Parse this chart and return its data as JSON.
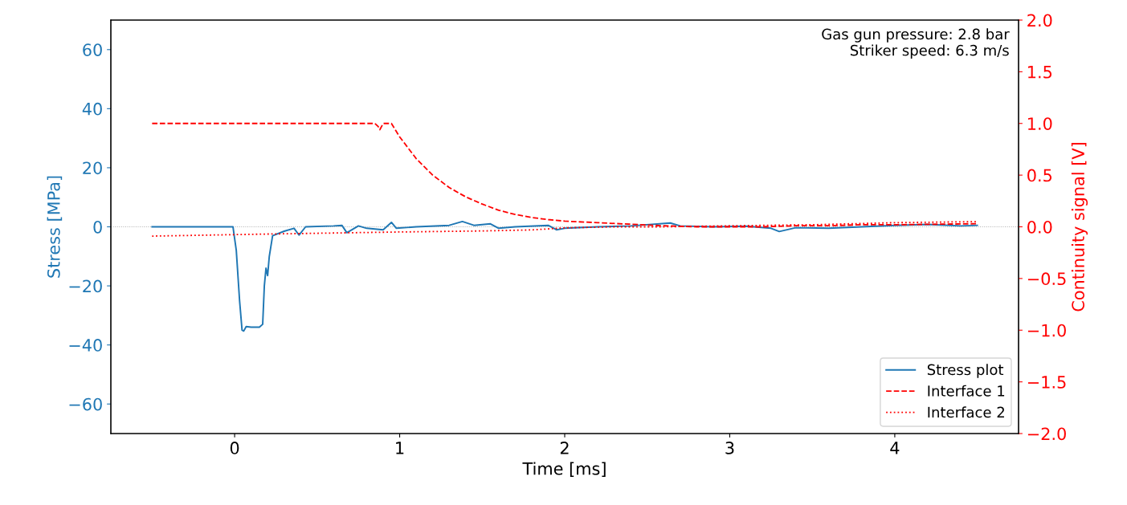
{
  "chart_data": {
    "type": "line",
    "xlabel": "Time [ms]",
    "ylabel": "Stress [MPa]",
    "y2label": "Continuity signal [V]",
    "xlim": [
      -0.75,
      4.75
    ],
    "xticks": [
      0,
      1,
      2,
      3,
      4
    ],
    "ylim": [
      -70,
      70
    ],
    "yticks": [
      -60,
      -40,
      -20,
      0,
      20,
      40,
      60
    ],
    "y2lim": [
      -2.0,
      2.0
    ],
    "y2ticks": [
      {
        "value": -2,
        "label": "−2.0"
      },
      {
        "value": -1.5,
        "label": "−1.5"
      },
      {
        "value": -1,
        "label": "−1.0"
      },
      {
        "value": -0.5,
        "label": "−0.5"
      },
      {
        "value": 0,
        "label": "0.0"
      },
      {
        "value": 0.5,
        "label": "0.5"
      },
      {
        "value": 1,
        "label": "1.0"
      },
      {
        "value": 1.5,
        "label": "1.5"
      },
      {
        "value": 2,
        "label": "2.0"
      }
    ],
    "grid": false,
    "legend": "bottom right",
    "ref_lines": [
      {
        "axis": "y",
        "value": 0,
        "color": "#aaaaaa",
        "line_style": "dotted"
      }
    ],
    "annotations": [
      "Gas gun pressure: 2.8 bar\nStriker speed: 6.3 m/s"
    ],
    "series": [
      {
        "name": "Stress plot",
        "color": "#1f77b4",
        "line_style": "solid",
        "x": [
          -0.5,
          -0.3,
          -0.1,
          -0.01,
          0.01,
          0.03,
          0.045,
          0.055,
          0.07,
          0.1,
          0.15,
          0.17,
          0.18,
          0.19,
          0.2,
          0.21,
          0.23,
          0.3,
          0.36,
          0.39,
          0.43,
          0.6,
          0.65,
          0.68,
          0.75,
          0.8,
          0.9,
          0.95,
          0.98,
          1.1,
          1.3,
          1.38,
          1.45,
          1.55,
          1.6,
          1.7,
          1.9,
          1.95,
          2.0,
          2.2,
          2.4,
          2.64,
          2.7,
          2.9,
          3.1,
          3.25,
          3.3,
          3.4,
          3.6,
          3.8,
          4.0,
          4.2,
          4.4,
          4.5
        ],
        "values": [
          0,
          0,
          0,
          0,
          -8,
          -25,
          -35,
          -35.3,
          -33.8,
          -34,
          -34,
          -33,
          -20,
          -14,
          -16.5,
          -10,
          -3,
          -1.5,
          -0.5,
          -2.8,
          0,
          0.3,
          0.5,
          -2,
          0.3,
          -0.5,
          -1,
          1.5,
          -0.5,
          0,
          0.5,
          1.8,
          0.5,
          1,
          -0.5,
          0,
          0.5,
          -1,
          -0.5,
          0,
          0.3,
          1.3,
          0.3,
          0,
          0.2,
          -0.5,
          -1.6,
          -0.3,
          -0.5,
          0,
          0.5,
          0.8,
          0.3,
          0.5
        ]
      },
      {
        "name": "Interface 1",
        "color": "#ff0000",
        "line_style": "dashed",
        "axis": "y2",
        "x": [
          -0.5,
          0.85,
          0.87,
          0.88,
          0.9,
          0.95,
          1.0,
          1.1,
          1.2,
          1.3,
          1.4,
          1.5,
          1.6,
          1.7,
          1.8,
          1.9,
          2.0,
          2.2,
          2.4,
          2.6,
          2.8,
          3.0,
          3.2,
          3.4,
          3.6,
          3.8,
          4.0,
          4.5
        ],
        "values": [
          1.0,
          1.0,
          0.97,
          0.94,
          1.0,
          1.0,
          0.87,
          0.66,
          0.5,
          0.38,
          0.29,
          0.22,
          0.16,
          0.12,
          0.09,
          0.07,
          0.055,
          0.04,
          0.025,
          0.01,
          0.0,
          0.0,
          0.0,
          0.01,
          0.01,
          0.02,
          0.02,
          0.03
        ]
      },
      {
        "name": "Interface 2",
        "color": "#ff0000",
        "line_style": "dotted",
        "axis": "y2",
        "x": [
          -0.5,
          0.2,
          1.0,
          1.5,
          1.8,
          2.0,
          2.3,
          2.6,
          3.0,
          3.5,
          4.0,
          4.5
        ],
        "values": [
          -0.09,
          -0.07,
          -0.05,
          -0.04,
          -0.03,
          -0.01,
          0.0,
          0.0,
          0.01,
          0.02,
          0.04,
          0.05
        ]
      }
    ]
  }
}
